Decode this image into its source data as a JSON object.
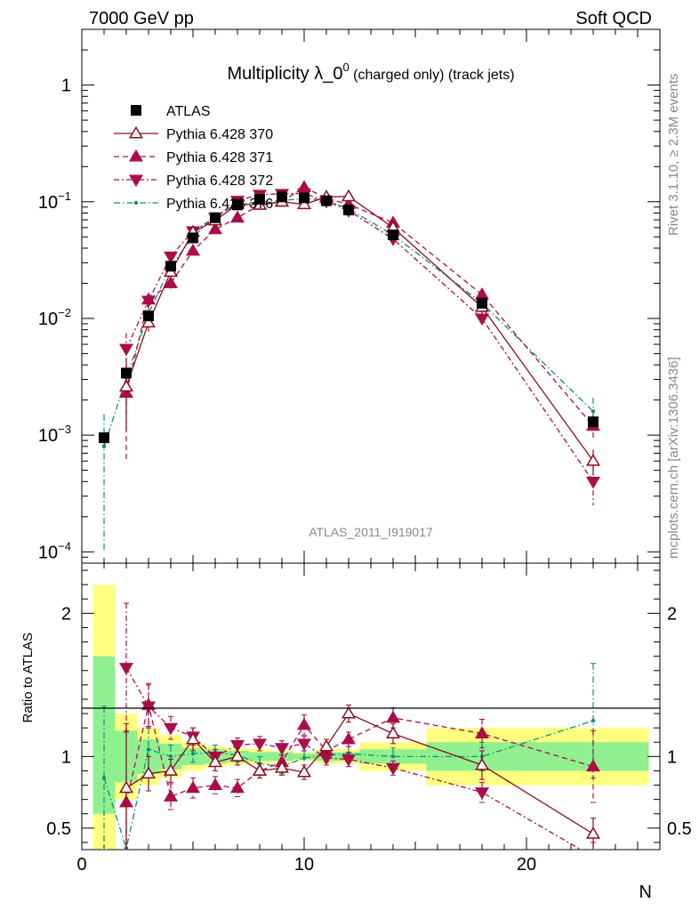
{
  "header": {
    "left": "7000 GeV pp",
    "right": "Soft QCD"
  },
  "side_labels": {
    "rivet": "Rivet 3.1.10, ≥ 2.3M events",
    "mcplots": "mcplots.cern.ch [arXiv:1306.3436]"
  },
  "colors": {
    "atlas": "#000000",
    "p370": "#8b0d1f",
    "p371": "#aa0d4a",
    "p372": "#aa0d4a",
    "p376": "#0e8f7a",
    "band_yellow": "#ffff80",
    "band_green": "#90f090"
  },
  "chart_data": [
    {
      "type": "scatter",
      "title": "Multiplicity λ_0^0 (charged only) (track jets)",
      "title_main": "Multiplicity λ_0",
      "title_sup": "0",
      "title_suffix": " (charged only) (track jets)",
      "analysis_label": "ATLAS_2011_I919017",
      "xlabel": "N",
      "ylabel": "",
      "xlim": [
        0,
        26
      ],
      "ylim": [
        8e-05,
        3
      ],
      "log_y": true,
      "y_tick_labels": [
        "10^-4",
        "10^-3",
        "10^-2",
        "10^-1",
        "1"
      ],
      "legend_position": "top-left",
      "series": [
        {
          "name": "ATLAS",
          "key": "atlas",
          "style": "data-square",
          "x": [
            1,
            2,
            3,
            4,
            5,
            6,
            7,
            8,
            9,
            10,
            11,
            12,
            14,
            18,
            23
          ],
          "y": [
            0.00095,
            0.0034,
            0.0105,
            0.028,
            0.049,
            0.073,
            0.094,
            0.105,
            0.11,
            0.108,
            0.102,
            0.085,
            0.052,
            0.0135,
            0.0013
          ],
          "err": [
            6e-05,
            0.0002,
            0.0004,
            0.0008,
            0.001,
            0.0015,
            0.002,
            0.002,
            0.002,
            0.002,
            0.002,
            0.0018,
            0.001,
            0.0005,
            0.0001
          ]
        },
        {
          "name": "Pythia 6.428 370",
          "key": "p370",
          "style": "solid-open-triangle-up",
          "x": [
            2,
            3,
            4,
            5,
            6,
            7,
            8,
            9,
            10,
            11,
            12,
            14,
            18,
            23
          ],
          "y": [
            0.0026,
            0.0092,
            0.025,
            0.055,
            0.069,
            0.095,
            0.094,
            0.1,
            0.095,
            0.11,
            0.111,
            0.06,
            0.0125,
            0.0006
          ],
          "err": [
            0.0015,
            0.0015,
            0.002,
            0.003,
            0.003,
            0.004,
            0.004,
            0.004,
            0.004,
            0.004,
            0.004,
            0.003,
            0.0015,
            0.00015
          ]
        },
        {
          "name": "Pythia 6.428 371",
          "key": "p371",
          "style": "dashed-filled-triangle-up",
          "x": [
            2,
            3,
            4,
            5,
            6,
            7,
            8,
            9,
            10,
            11,
            12,
            14,
            18,
            23
          ],
          "y": [
            0.0023,
            0.0145,
            0.02,
            0.038,
            0.058,
            0.073,
            0.094,
            0.1,
            0.133,
            0.107,
            0.095,
            0.066,
            0.016,
            0.0012
          ],
          "err": [
            0.0017,
            0.002,
            0.002,
            0.003,
            0.003,
            0.004,
            0.004,
            0.004,
            0.005,
            0.004,
            0.004,
            0.003,
            0.0015,
            0.0003
          ]
        },
        {
          "name": "Pythia 6.428 372",
          "key": "p372",
          "style": "dashdot-filled-triangle-down",
          "x": [
            2,
            3,
            4,
            5,
            6,
            7,
            8,
            9,
            10,
            11,
            12,
            14,
            18,
            23
          ],
          "y": [
            0.0055,
            0.0142,
            0.034,
            0.056,
            0.073,
            0.102,
            0.115,
            0.117,
            0.118,
            0.101,
            0.084,
            0.048,
            0.01,
            0.0004
          ],
          "err": [
            0.002,
            0.002,
            0.002,
            0.003,
            0.003,
            0.004,
            0.004,
            0.004,
            0.005,
            0.004,
            0.004,
            0.003,
            0.0012,
            0.00015
          ]
        },
        {
          "name": "Pythia 6.428 376",
          "key": "p376",
          "style": "dashdot-dot",
          "x": [
            1,
            2,
            3,
            4,
            5,
            6,
            7,
            8,
            9,
            10,
            11,
            12,
            14,
            18,
            23
          ],
          "y": [
            0.0008,
            0.0031,
            0.011,
            0.028,
            0.05,
            0.075,
            0.095,
            0.1,
            0.102,
            0.107,
            0.103,
            0.087,
            0.052,
            0.0135,
            0.0016
          ],
          "err": [
            0.0007,
            0.0015,
            0.002,
            0.002,
            0.003,
            0.003,
            0.004,
            0.004,
            0.004,
            0.004,
            0.004,
            0.003,
            0.003,
            0.0015,
            0.0005
          ]
        }
      ]
    },
    {
      "type": "scatter",
      "title": "",
      "xlabel": "N",
      "ylabel": "Ratio to ATLAS",
      "xlim": [
        0,
        26
      ],
      "ylim": [
        0.35,
        2.35
      ],
      "y_tick_labels": [
        "0.5",
        "1",
        "2"
      ],
      "x_tick_labels": [
        "0",
        "10",
        "20"
      ],
      "bands": {
        "edges": [
          0.5,
          1.5,
          2.5,
          3.5,
          4.5,
          5.5,
          6.5,
          7.5,
          8.5,
          9.5,
          10.5,
          11.5,
          12.5,
          15.5,
          20.5,
          25.5
        ],
        "yellow": [
          [
            0.35,
            2.2
          ],
          [
            0.7,
            1.3
          ],
          [
            0.8,
            1.2
          ],
          [
            0.85,
            1.15
          ],
          [
            0.9,
            1.1
          ],
          [
            0.93,
            1.07
          ],
          [
            0.94,
            1.06
          ],
          [
            0.95,
            1.05
          ],
          [
            0.96,
            1.04
          ],
          [
            0.97,
            1.03
          ],
          [
            0.95,
            1.05
          ],
          [
            0.95,
            1.05
          ],
          [
            0.9,
            1.1
          ],
          [
            0.8,
            1.2
          ],
          [
            0.8,
            1.2
          ],
          [
            0.6,
            1.55
          ]
        ],
        "green": [
          [
            0.6,
            1.7
          ],
          [
            0.82,
            1.18
          ],
          [
            0.88,
            1.12
          ],
          [
            0.91,
            1.09
          ],
          [
            0.94,
            1.06
          ],
          [
            0.95,
            1.05
          ],
          [
            0.96,
            1.04
          ],
          [
            0.97,
            1.03
          ],
          [
            0.97,
            1.03
          ],
          [
            0.98,
            1.02
          ],
          [
            0.97,
            1.03
          ],
          [
            0.97,
            1.03
          ],
          [
            0.95,
            1.05
          ],
          [
            0.9,
            1.1
          ],
          [
            0.9,
            1.1
          ],
          [
            0.82,
            1.25
          ]
        ]
      },
      "series": [
        {
          "name": "Pythia 6.428 370",
          "key": "p370",
          "x": [
            2,
            3,
            4,
            5,
            6,
            7,
            8,
            9,
            10,
            11,
            12,
            14,
            18,
            23
          ],
          "y": [
            0.78,
            0.88,
            0.9,
            1.12,
            0.96,
            1.0,
            0.9,
            0.92,
            0.89,
            1.07,
            1.3,
            1.16,
            0.94,
            0.46
          ],
          "err": [
            0.45,
            0.12,
            0.08,
            0.08,
            0.06,
            0.06,
            0.05,
            0.05,
            0.05,
            0.05,
            0.06,
            0.07,
            0.1,
            0.11
          ]
        },
        {
          "name": "Pythia 6.428 371",
          "key": "p371",
          "x": [
            2,
            3,
            4,
            5,
            6,
            7,
            8,
            9,
            10,
            11,
            12,
            14,
            18,
            23
          ],
          "y": [
            0.68,
            1.36,
            0.72,
            0.78,
            0.8,
            0.78,
            0.9,
            0.96,
            1.22,
            1.04,
            1.12,
            1.27,
            1.16,
            0.93
          ],
          "err": [
            0.5,
            0.15,
            0.09,
            0.07,
            0.06,
            0.06,
            0.05,
            0.05,
            0.07,
            0.05,
            0.05,
            0.07,
            0.1,
            0.25
          ]
        },
        {
          "name": "Pythia 6.428 372",
          "key": "p372",
          "x": [
            2,
            3,
            4,
            5,
            6,
            7,
            8,
            9,
            10,
            11,
            12,
            14,
            18,
            23
          ],
          "y": [
            1.62,
            1.35,
            1.2,
            1.14,
            1.0,
            1.08,
            1.09,
            1.06,
            1.09,
            0.99,
            0.98,
            0.92,
            0.75,
            0.3
          ],
          "err": [
            0.45,
            0.15,
            0.08,
            0.06,
            0.05,
            0.05,
            0.05,
            0.05,
            0.05,
            0.05,
            0.05,
            0.05,
            0.07,
            0.1
          ]
        },
        {
          "name": "Pythia 6.428 376",
          "key": "p376",
          "x": [
            1,
            2,
            3,
            4,
            5,
            6,
            7,
            8,
            9,
            10,
            11,
            12,
            14,
            18,
            23
          ],
          "y": [
            0.85,
            0.36,
            1.05,
            1.0,
            1.02,
            1.03,
            1.01,
            0.95,
            0.93,
            0.99,
            1.01,
            1.02,
            1.0,
            1.0,
            1.25
          ],
          "err": [
            0.5,
            0.4,
            0.15,
            0.08,
            0.06,
            0.05,
            0.05,
            0.05,
            0.05,
            0.05,
            0.05,
            0.05,
            0.06,
            0.1,
            0.4
          ]
        }
      ]
    }
  ]
}
